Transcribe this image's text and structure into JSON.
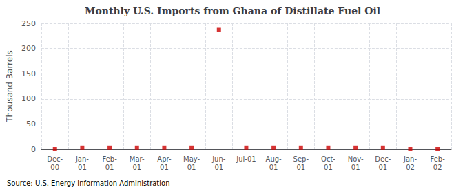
{
  "chart_data": {
    "type": "scatter",
    "title": "Monthly U.S. Imports from Ghana of Distillate Fuel Oil",
    "ylabel": "Thousand Barrels",
    "annotation": "Source: U.S. Energy Information Administration",
    "categories": [
      "Dec-\n00",
      "Jan-\n01",
      "Feb-\n01",
      "Mar-\n01",
      "Apr-\n01",
      "May-\n01",
      "Jun-\n01",
      "Jul-01",
      "Aug-\n01",
      "Sep-\n01",
      "Oct-\n01",
      "Nov-\n01",
      "Dec-\n01",
      "Jan-\n02",
      "Feb-\n02"
    ],
    "values": [
      0,
      3,
      3,
      3,
      3,
      3,
      237,
      3,
      3,
      3,
      3,
      3,
      3,
      0,
      0
    ],
    "color": "#cc0000",
    "marker": "square",
    "ylim": [
      0,
      250
    ],
    "yticks": [
      0,
      50,
      100,
      150,
      200,
      250
    ],
    "grid": true
  }
}
